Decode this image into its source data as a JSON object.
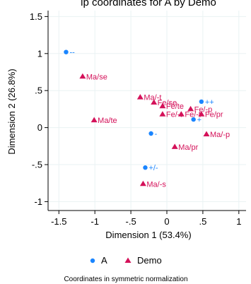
{
  "chart_data": {
    "type": "scatter",
    "title": "ip coordinates for A by Demo",
    "xlabel": "Dimension 1 (53.4%)",
    "ylabel": "Dimension 2 (26.8%)",
    "xlim": [
      -1.65,
      1.1
    ],
    "ylim": [
      -1.12,
      1.58
    ],
    "xticks": [
      -1.5,
      -1,
      -0.5,
      0,
      0.5,
      1
    ],
    "xtick_labels": [
      "-1.5",
      "-1",
      "-.5",
      "0",
      ".5",
      "1"
    ],
    "yticks": [
      -1,
      -0.5,
      0,
      0.5,
      1,
      1.5
    ],
    "ytick_labels": [
      "-1",
      "-.5",
      "0",
      ".5",
      "1",
      "1.5"
    ],
    "grid": true,
    "legend_position": "bottom",
    "note": "Coordinates in symmetric normalization",
    "series": [
      {
        "name": "A",
        "marker": "circle",
        "color": "#1a85ff",
        "points": [
          {
            "label": "--",
            "x": -1.4,
            "y": 1.02
          },
          {
            "label": "++",
            "x": 0.48,
            "y": 0.35
          },
          {
            "label": "+",
            "x": 0.37,
            "y": 0.11
          },
          {
            "label": "-",
            "x": -0.22,
            "y": -0.08
          },
          {
            "label": "+/-",
            "x": -0.3,
            "y": -0.54
          }
        ]
      },
      {
        "name": "Demo",
        "marker": "triangle",
        "color": "#d41159",
        "points": [
          {
            "label": "Ma/se",
            "x": -1.17,
            "y": 0.69
          },
          {
            "label": "Ma/-t",
            "x": -0.37,
            "y": 0.41
          },
          {
            "label": "Fe/se",
            "x": -0.18,
            "y": 0.34
          },
          {
            "label": "Fe/te",
            "x": -0.06,
            "y": 0.29
          },
          {
            "label": "Fe/-p",
            "x": 0.33,
            "y": 0.25
          },
          {
            "label": "Fe/-t",
            "x": -0.06,
            "y": 0.18
          },
          {
            "label": "Fe/-t",
            "x": 0.2,
            "y": 0.18
          },
          {
            "label": "Fe/pr",
            "x": 0.48,
            "y": 0.18
          },
          {
            "label": "Ma/te",
            "x": -1.01,
            "y": 0.1
          },
          {
            "label": "Ma/-p",
            "x": 0.55,
            "y": -0.09
          },
          {
            "label": "Ma/pr",
            "x": 0.11,
            "y": -0.26
          },
          {
            "label": "Ma/-s",
            "x": -0.33,
            "y": -0.76
          }
        ]
      }
    ]
  }
}
